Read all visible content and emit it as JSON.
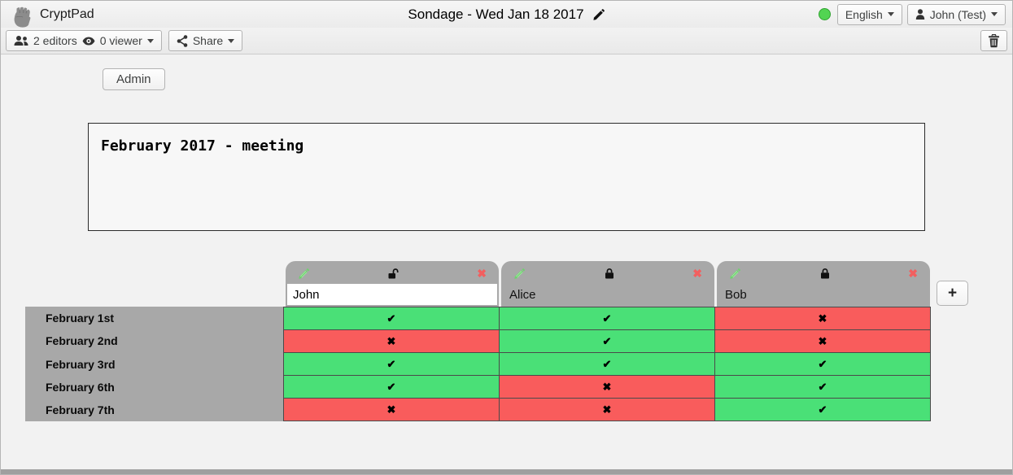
{
  "topbar": {
    "app_name": "CryptPad",
    "doc_title": "Sondage - Wed Jan 18 2017",
    "language_button": "English",
    "user_button": "John (Test)",
    "status_color": "#52d452"
  },
  "toolbar": {
    "editors_label": "2 editors",
    "viewers_label": "0 viewer",
    "share_label": "Share"
  },
  "admin_button_label": "Admin",
  "poll": {
    "description": "February 2017 - meeting",
    "columns": [
      {
        "name": "John",
        "lock_state": "unlocked",
        "editable": true
      },
      {
        "name": "Alice",
        "lock_state": "locked",
        "editable": false
      },
      {
        "name": "Bob",
        "lock_state": "locked",
        "editable": false
      }
    ],
    "row_labels": [
      "February 1st",
      "February 2nd",
      "February 3rd",
      "February 6th",
      "February 7th"
    ],
    "cells": [
      [
        "yes",
        "yes",
        "no"
      ],
      [
        "no",
        "yes",
        "no"
      ],
      [
        "yes",
        "yes",
        "yes"
      ],
      [
        "yes",
        "no",
        "yes"
      ],
      [
        "no",
        "no",
        "yes"
      ]
    ],
    "glyphs": {
      "yes": "✔",
      "no": "✖",
      "remove_column": "✖"
    },
    "add_column_label": "+",
    "colors": {
      "yes": "#4ae077",
      "no": "#f95c5c",
      "header_gray": "#a8a8a8",
      "remove_red": "#f25f5f"
    }
  }
}
